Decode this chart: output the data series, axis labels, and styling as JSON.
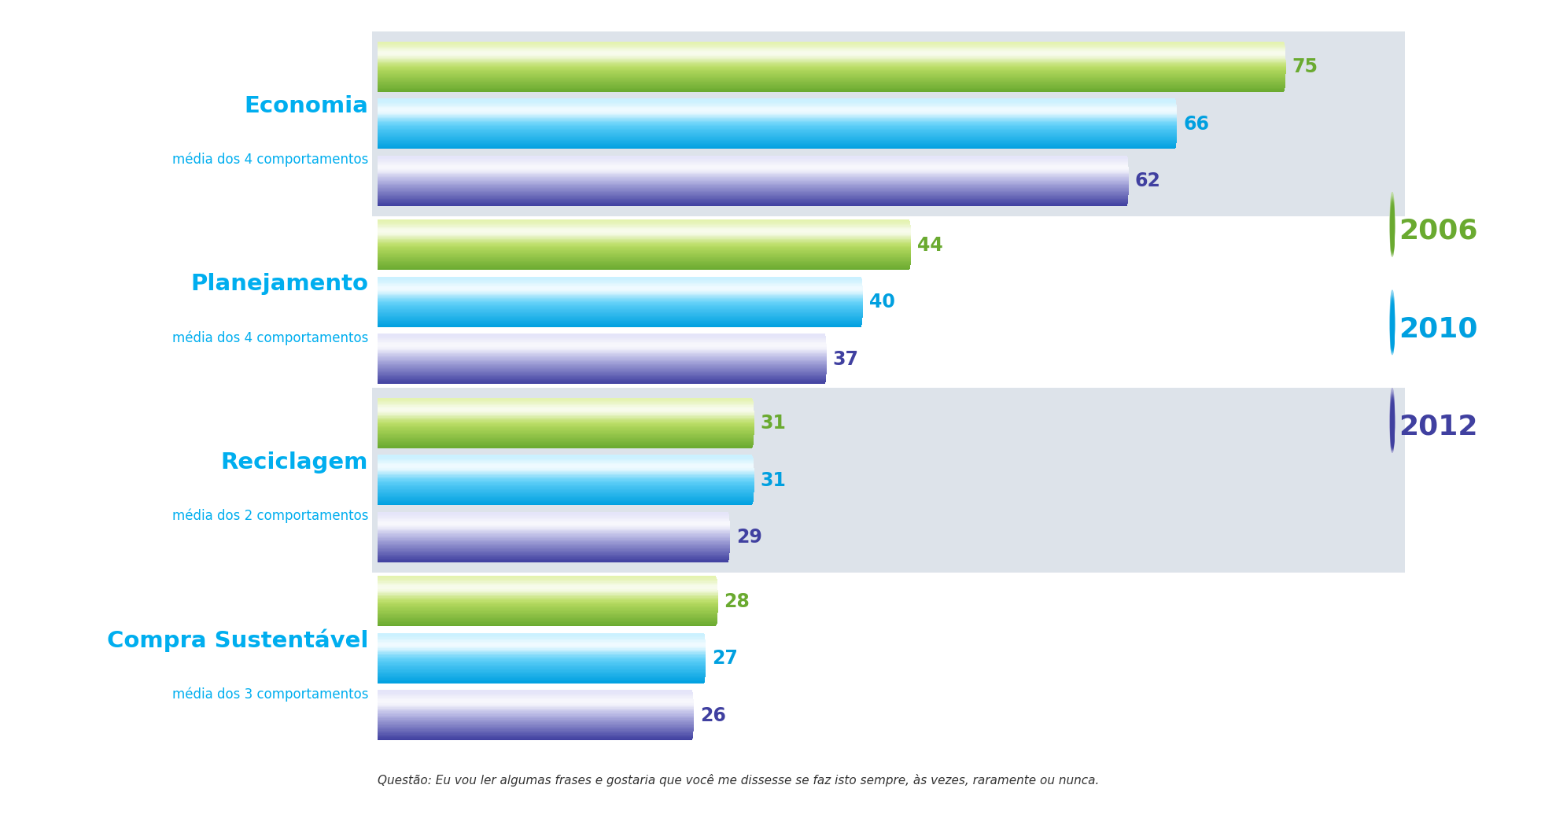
{
  "categories": [
    "Economia",
    "Planejamento",
    "Reciclagem",
    "Compra Sustentável"
  ],
  "subtitles": [
    "média dos 4 comportamentos",
    "média dos 4 comportamentos",
    "média dos 2 comportamentos",
    "média dos 3 comportamentos"
  ],
  "values_2006": [
    75,
    44,
    31,
    28
  ],
  "values_2010": [
    66,
    40,
    31,
    27
  ],
  "values_2012": [
    62,
    37,
    29,
    26
  ],
  "color_2006_light": "#dff0a0",
  "color_2006_mid": "#b8dc60",
  "color_2006_dark": "#6aaa30",
  "color_2010_light": "#c0eeff",
  "color_2010_mid": "#60d0f8",
  "color_2010_dark": "#00a0e0",
  "color_2012_light": "#e0e0f8",
  "color_2012_mid": "#b0b0e0",
  "color_2012_dark": "#4040a0",
  "label_2006": "2006",
  "label_2010": "2010",
  "label_2012": "2012",
  "legend_color_2006": "#6aaa30",
  "legend_color_2010": "#00a0e0",
  "legend_color_2012": "#4040a0",
  "footnote": "Questão: Eu vou ler algumas frases e gostaria que você me dissesse se faz isto sempre, às vezes, raramente ou nunca.",
  "bg_shaded": [
    true,
    false,
    true,
    false
  ],
  "bg_color": "#dde3ea",
  "title_color": "#00aeef",
  "value_color_2006": "#6aaa30",
  "value_color_2010": "#00a0e0",
  "value_color_2012": "#4040a0",
  "subtitle_color": "#00aeef"
}
